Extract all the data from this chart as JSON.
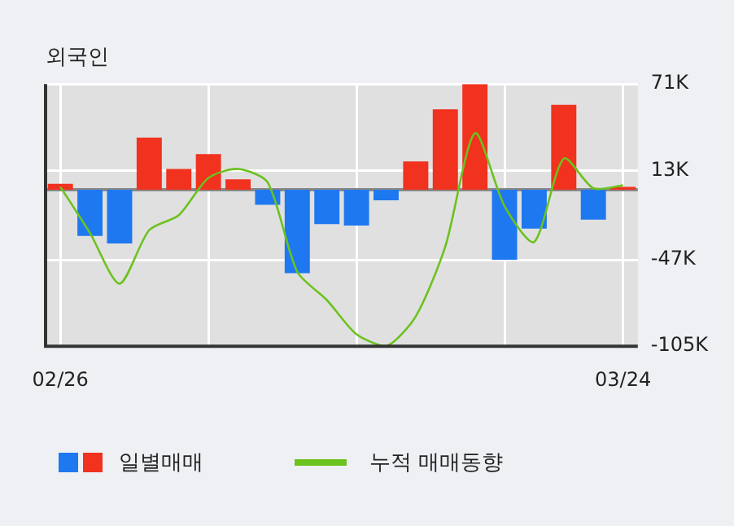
{
  "chart_data": {
    "type": "bar",
    "title": "외국인",
    "categories": [
      "02/26",
      null,
      null,
      null,
      null,
      null,
      null,
      null,
      null,
      null,
      null,
      null,
      null,
      null,
      null,
      null,
      null,
      null,
      null,
      "03/24"
    ],
    "series": [
      {
        "name": "일별매매",
        "colors": [
          "#f0321e",
          "#1e78f0",
          "#1e78f0",
          "#f0321e",
          "#f0321e",
          "#f0321e",
          "#f0321e",
          "#1e78f0",
          "#1e78f0",
          "#1e78f0",
          "#1e78f0",
          "#1e78f0",
          "#f0321e",
          "#f0321e",
          "#f0321e",
          "#1e78f0",
          "#1e78f0",
          "#f0321e",
          "#1e78f0",
          "#f0321e"
        ],
        "values": [
          4,
          -31,
          -36,
          35,
          14,
          24,
          7,
          -10,
          -56,
          -23,
          -24,
          -7,
          19,
          54,
          71,
          -47,
          -26,
          57,
          -20,
          2
        ]
      },
      {
        "name": "누적 매매동향",
        "type": "line",
        "color": "#6cc21e",
        "values": [
          2,
          -29,
          -63,
          -27,
          -17,
          8,
          14,
          5,
          -55,
          -74,
          -97,
          -105,
          -85,
          -38,
          38,
          -11,
          -35,
          21,
          1,
          3
        ]
      }
    ],
    "ylim": [
      -105,
      71
    ],
    "yticks": [
      {
        "value": 71,
        "label": "71K"
      },
      {
        "value": 13,
        "label": "13K"
      },
      {
        "value": -47,
        "label": "-47K"
      },
      {
        "value": -105,
        "label": "-105K"
      }
    ],
    "grid": true,
    "legend": "bottom"
  }
}
